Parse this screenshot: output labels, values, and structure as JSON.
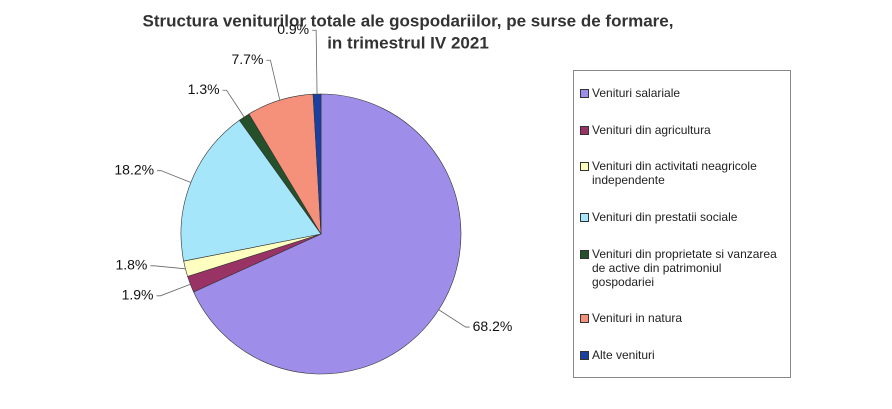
{
  "chart_data": {
    "type": "pie",
    "title": [
      "Structura veniturilor totale ale gospodariilor, pe surse de formare,",
      "in trimestrul IV 2021"
    ],
    "categories": [
      "Venituri salariale",
      "Venituri din agricultura",
      "Venituri din activitati neagricole independente",
      "Venituri din prestatii sociale",
      "Venituri din proprietate si vanzarea de active din patrimoniul gospodariei",
      "Venituri in natura",
      "Alte venituri"
    ],
    "values": [
      68.2,
      1.9,
      1.8,
      18.2,
      1.3,
      7.7,
      0.9
    ],
    "value_labels": [
      "68.2%",
      "1.9%",
      "1.8%",
      "18.2%",
      "1.3%",
      "7.7%",
      "0.9%"
    ],
    "colors": [
      "#9f8ee9",
      "#993366",
      "#ffffc0",
      "#a6e6fa",
      "#24502a",
      "#f5907a",
      "#1a3fa0"
    ],
    "legend": "right"
  }
}
